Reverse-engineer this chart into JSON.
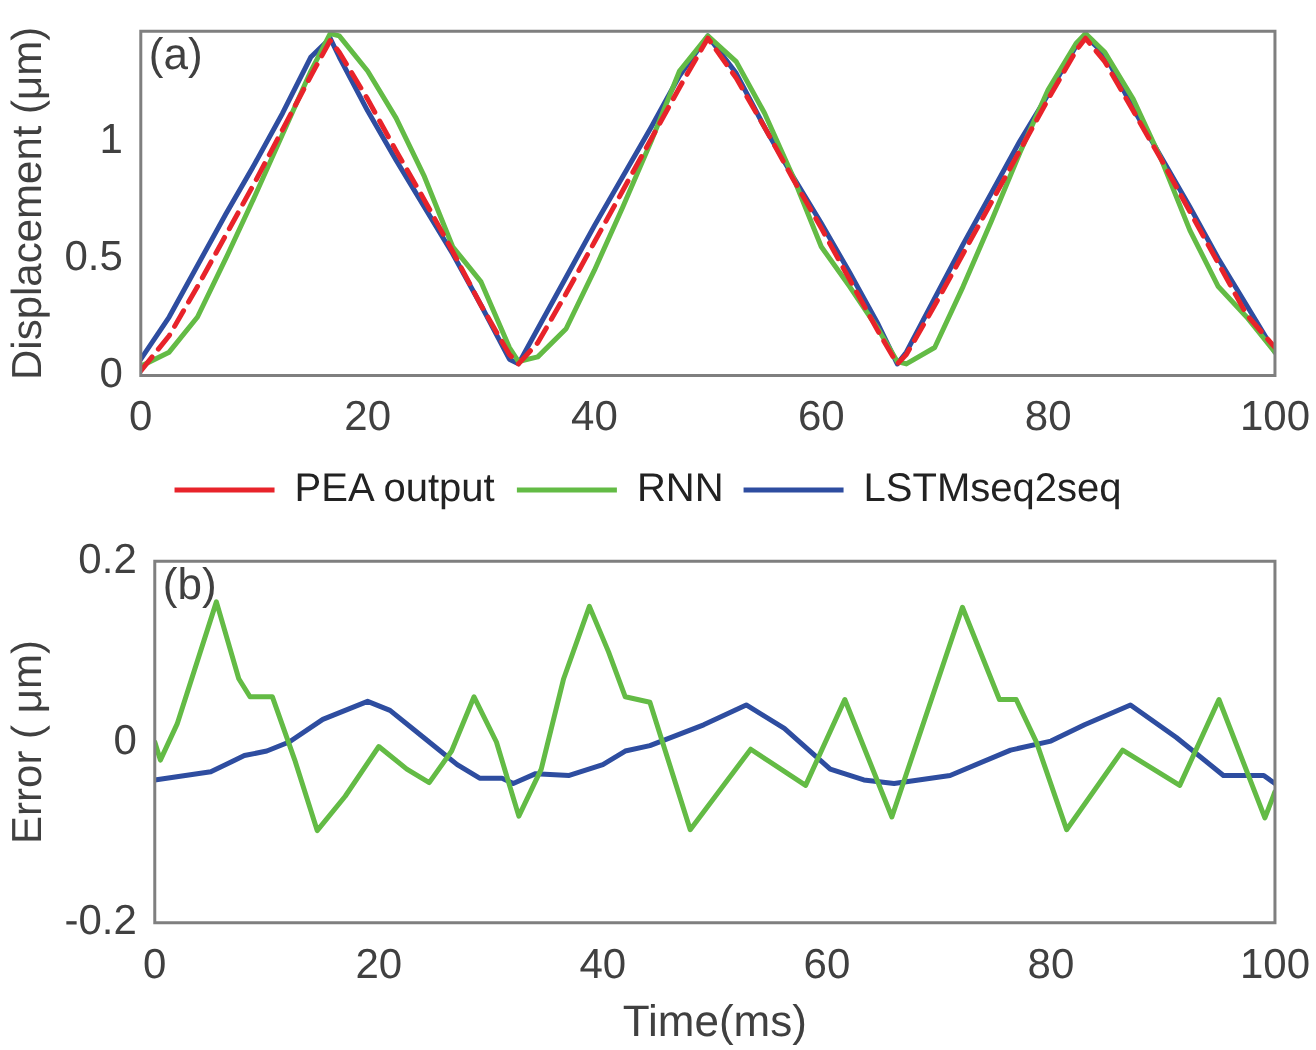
{
  "chart_data": [
    {
      "type": "line",
      "annotations": [
        "(a)"
      ],
      "ylabel": "Displacement (μm)",
      "legend": "bottom",
      "grid": false,
      "marker": "none",
      "x": [
        0,
        2.5,
        5,
        7.5,
        10,
        12.5,
        15,
        16.7,
        17.5,
        20,
        22.5,
        25,
        27.5,
        30,
        32.5,
        33.3,
        35,
        37.5,
        40,
        42.5,
        45,
        47.5,
        50,
        52.5,
        55,
        57.5,
        60,
        62.5,
        65,
        66.7,
        67.5,
        70,
        72.5,
        75,
        77.5,
        80,
        82.5,
        83.3,
        85,
        87.5,
        90,
        92.5,
        95,
        97.5,
        100
      ],
      "xlim": [
        0,
        100
      ],
      "xticks": [
        0,
        20,
        40,
        60,
        80,
        100
      ],
      "ylim": [
        0,
        1.47
      ],
      "yticks": [
        0,
        0.5,
        1
      ],
      "series": [
        {
          "name": "PEA output",
          "color": "#e8232a",
          "line_style": "dashed",
          "values": [
            0.02,
            0.17,
            0.38,
            0.6,
            0.82,
            1.05,
            1.28,
            1.43,
            1.38,
            1.18,
            0.96,
            0.75,
            0.53,
            0.3,
            0.09,
            0.05,
            0.14,
            0.35,
            0.57,
            0.79,
            1.01,
            1.23,
            1.44,
            1.27,
            1.06,
            0.84,
            0.63,
            0.41,
            0.19,
            0.05,
            0.09,
            0.3,
            0.52,
            0.74,
            0.96,
            1.18,
            1.39,
            1.44,
            1.34,
            1.13,
            0.92,
            0.7,
            0.48,
            0.26,
            0.12
          ]
        },
        {
          "name": "RNN",
          "color": "#63bb45",
          "line_style": "solid",
          "values": [
            0.04,
            0.1,
            0.25,
            0.5,
            0.76,
            1.03,
            1.3,
            1.46,
            1.45,
            1.3,
            1.1,
            0.85,
            0.55,
            0.4,
            0.12,
            0.06,
            0.08,
            0.2,
            0.45,
            0.72,
            1.0,
            1.3,
            1.45,
            1.34,
            1.12,
            0.85,
            0.55,
            0.38,
            0.2,
            0.06,
            0.05,
            0.12,
            0.38,
            0.66,
            0.95,
            1.22,
            1.42,
            1.46,
            1.38,
            1.18,
            0.92,
            0.62,
            0.38,
            0.25,
            0.1
          ]
        },
        {
          "name": "LSTMseq2seq",
          "color": "#2e4da0",
          "line_style": "solid",
          "values": [
            0.07,
            0.25,
            0.47,
            0.69,
            0.9,
            1.12,
            1.36,
            1.44,
            1.36,
            1.13,
            0.92,
            0.72,
            0.52,
            0.3,
            0.07,
            0.05,
            0.2,
            0.42,
            0.64,
            0.85,
            1.06,
            1.28,
            1.45,
            1.29,
            1.06,
            0.85,
            0.65,
            0.44,
            0.22,
            0.05,
            0.1,
            0.33,
            0.56,
            0.78,
            1.0,
            1.2,
            1.41,
            1.45,
            1.37,
            1.14,
            0.93,
            0.72,
            0.5,
            0.3,
            0.1
          ]
        }
      ]
    },
    {
      "type": "line",
      "annotations": [
        "(b)"
      ],
      "xlabel": "Time(ms)",
      "ylabel": "Error ( μm)",
      "legend": false,
      "grid": false,
      "marker": "none",
      "xlim": [
        0,
        100
      ],
      "xticks": [
        0,
        20,
        40,
        60,
        80,
        100
      ],
      "ylim": [
        -0.2,
        0.2
      ],
      "yticks": [
        -0.2,
        0,
        0.2
      ],
      "series": [
        {
          "color": "#63bb45",
          "x": [
            0,
            0.5,
            2,
            5.5,
            7.5,
            8.5,
            10.5,
            12.5,
            14.5,
            17,
            20,
            22.5,
            24.5,
            26.5,
            28.5,
            30.5,
            32.5,
            34.5,
            36.5,
            38.8,
            40.5,
            42,
            44.2,
            47.8,
            53.2,
            58.1,
            61.6,
            65.8,
            72.1,
            75.4,
            76.9,
            78.7,
            81.4,
            86.4,
            91.5,
            95,
            99.1,
            100
          ],
          "values": [
            0,
            -0.02,
            0.02,
            0.155,
            0.07,
            0.05,
            0.05,
            -0.02,
            -0.098,
            -0.06,
            -0.005,
            -0.03,
            -0.045,
            -0.01,
            0.05,
            0,
            -0.082,
            -0.03,
            0.07,
            0.15,
            0.1,
            0.05,
            0.044,
            -0.097,
            -0.008,
            -0.048,
            0.047,
            -0.083,
            0.149,
            0.047,
            0.047,
            0,
            -0.097,
            -0.009,
            -0.048,
            0.047,
            -0.084,
            -0.055
          ]
        },
        {
          "color": "#2e4da0",
          "x": [
            0,
            5,
            8,
            10,
            12,
            15,
            17,
            19,
            21,
            24,
            27,
            29,
            31,
            32,
            34,
            37,
            40,
            42,
            44.2,
            49,
            52.8,
            56.2,
            60.3,
            63.3,
            66,
            71,
            76.4,
            80,
            83,
            87.1,
            91.2,
            95.4,
            99,
            100
          ],
          "values": [
            -0.042,
            -0.033,
            -0.015,
            -0.01,
            0,
            0.025,
            0.035,
            0.045,
            0.035,
            0.005,
            -0.025,
            -0.04,
            -0.04,
            -0.046,
            -0.035,
            -0.037,
            -0.025,
            -0.01,
            -0.004,
            0.019,
            0.041,
            0.015,
            -0.03,
            -0.042,
            -0.046,
            -0.037,
            -0.009,
            0.001,
            0.019,
            0.041,
            0.005,
            -0.037,
            -0.037,
            -0.046
          ]
        }
      ]
    }
  ]
}
